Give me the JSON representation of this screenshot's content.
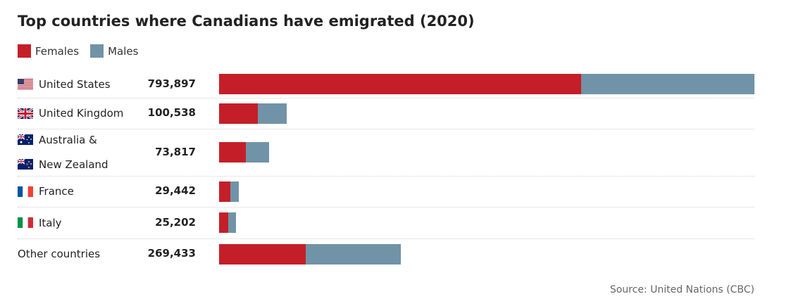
{
  "title": "Top countries where Canadians have emigrated (2020)",
  "source": "Source: United Nations (CBC)",
  "legend": [
    {
      "label": "Females",
      "color": "#c41f28"
    },
    {
      "label": "Males",
      "color": "#7193a7"
    }
  ],
  "chart_data": {
    "type": "bar",
    "orientation": "horizontal",
    "stacked": true,
    "title": "Top countries where Canadians have emigrated (2020)",
    "categories": [
      "United States",
      "United Kingdom",
      "Australia & New Zealand",
      "France",
      "Italy",
      "Other countries"
    ],
    "category_lines": [
      [
        "United States"
      ],
      [
        "United Kingdom"
      ],
      [
        "Australia &",
        "New Zealand"
      ],
      [
        "France"
      ],
      [
        "Italy"
      ],
      [
        "Other countries"
      ]
    ],
    "flags": [
      "us-flag-icon",
      "uk-flag-icon",
      "au-nz-flag-icon",
      "france-flag-icon",
      "italy-flag-icon",
      ""
    ],
    "totals_text": [
      "793,897",
      "100,538",
      "73,817",
      "29,442",
      "25,202",
      "269,433"
    ],
    "totals": [
      793897,
      100538,
      73817,
      29442,
      25202,
      269433
    ],
    "series": [
      {
        "name": "Females",
        "color": "#c41f28",
        "values": [
          537000,
          57000,
          40000,
          17000,
          13700,
          128000
        ]
      },
      {
        "name": "Males",
        "color": "#7193a7",
        "values": [
          256897,
          43538,
          33817,
          12442,
          11502,
          141433
        ]
      }
    ],
    "xlim": [
      0,
      793897
    ],
    "legend_position": "top-left"
  }
}
